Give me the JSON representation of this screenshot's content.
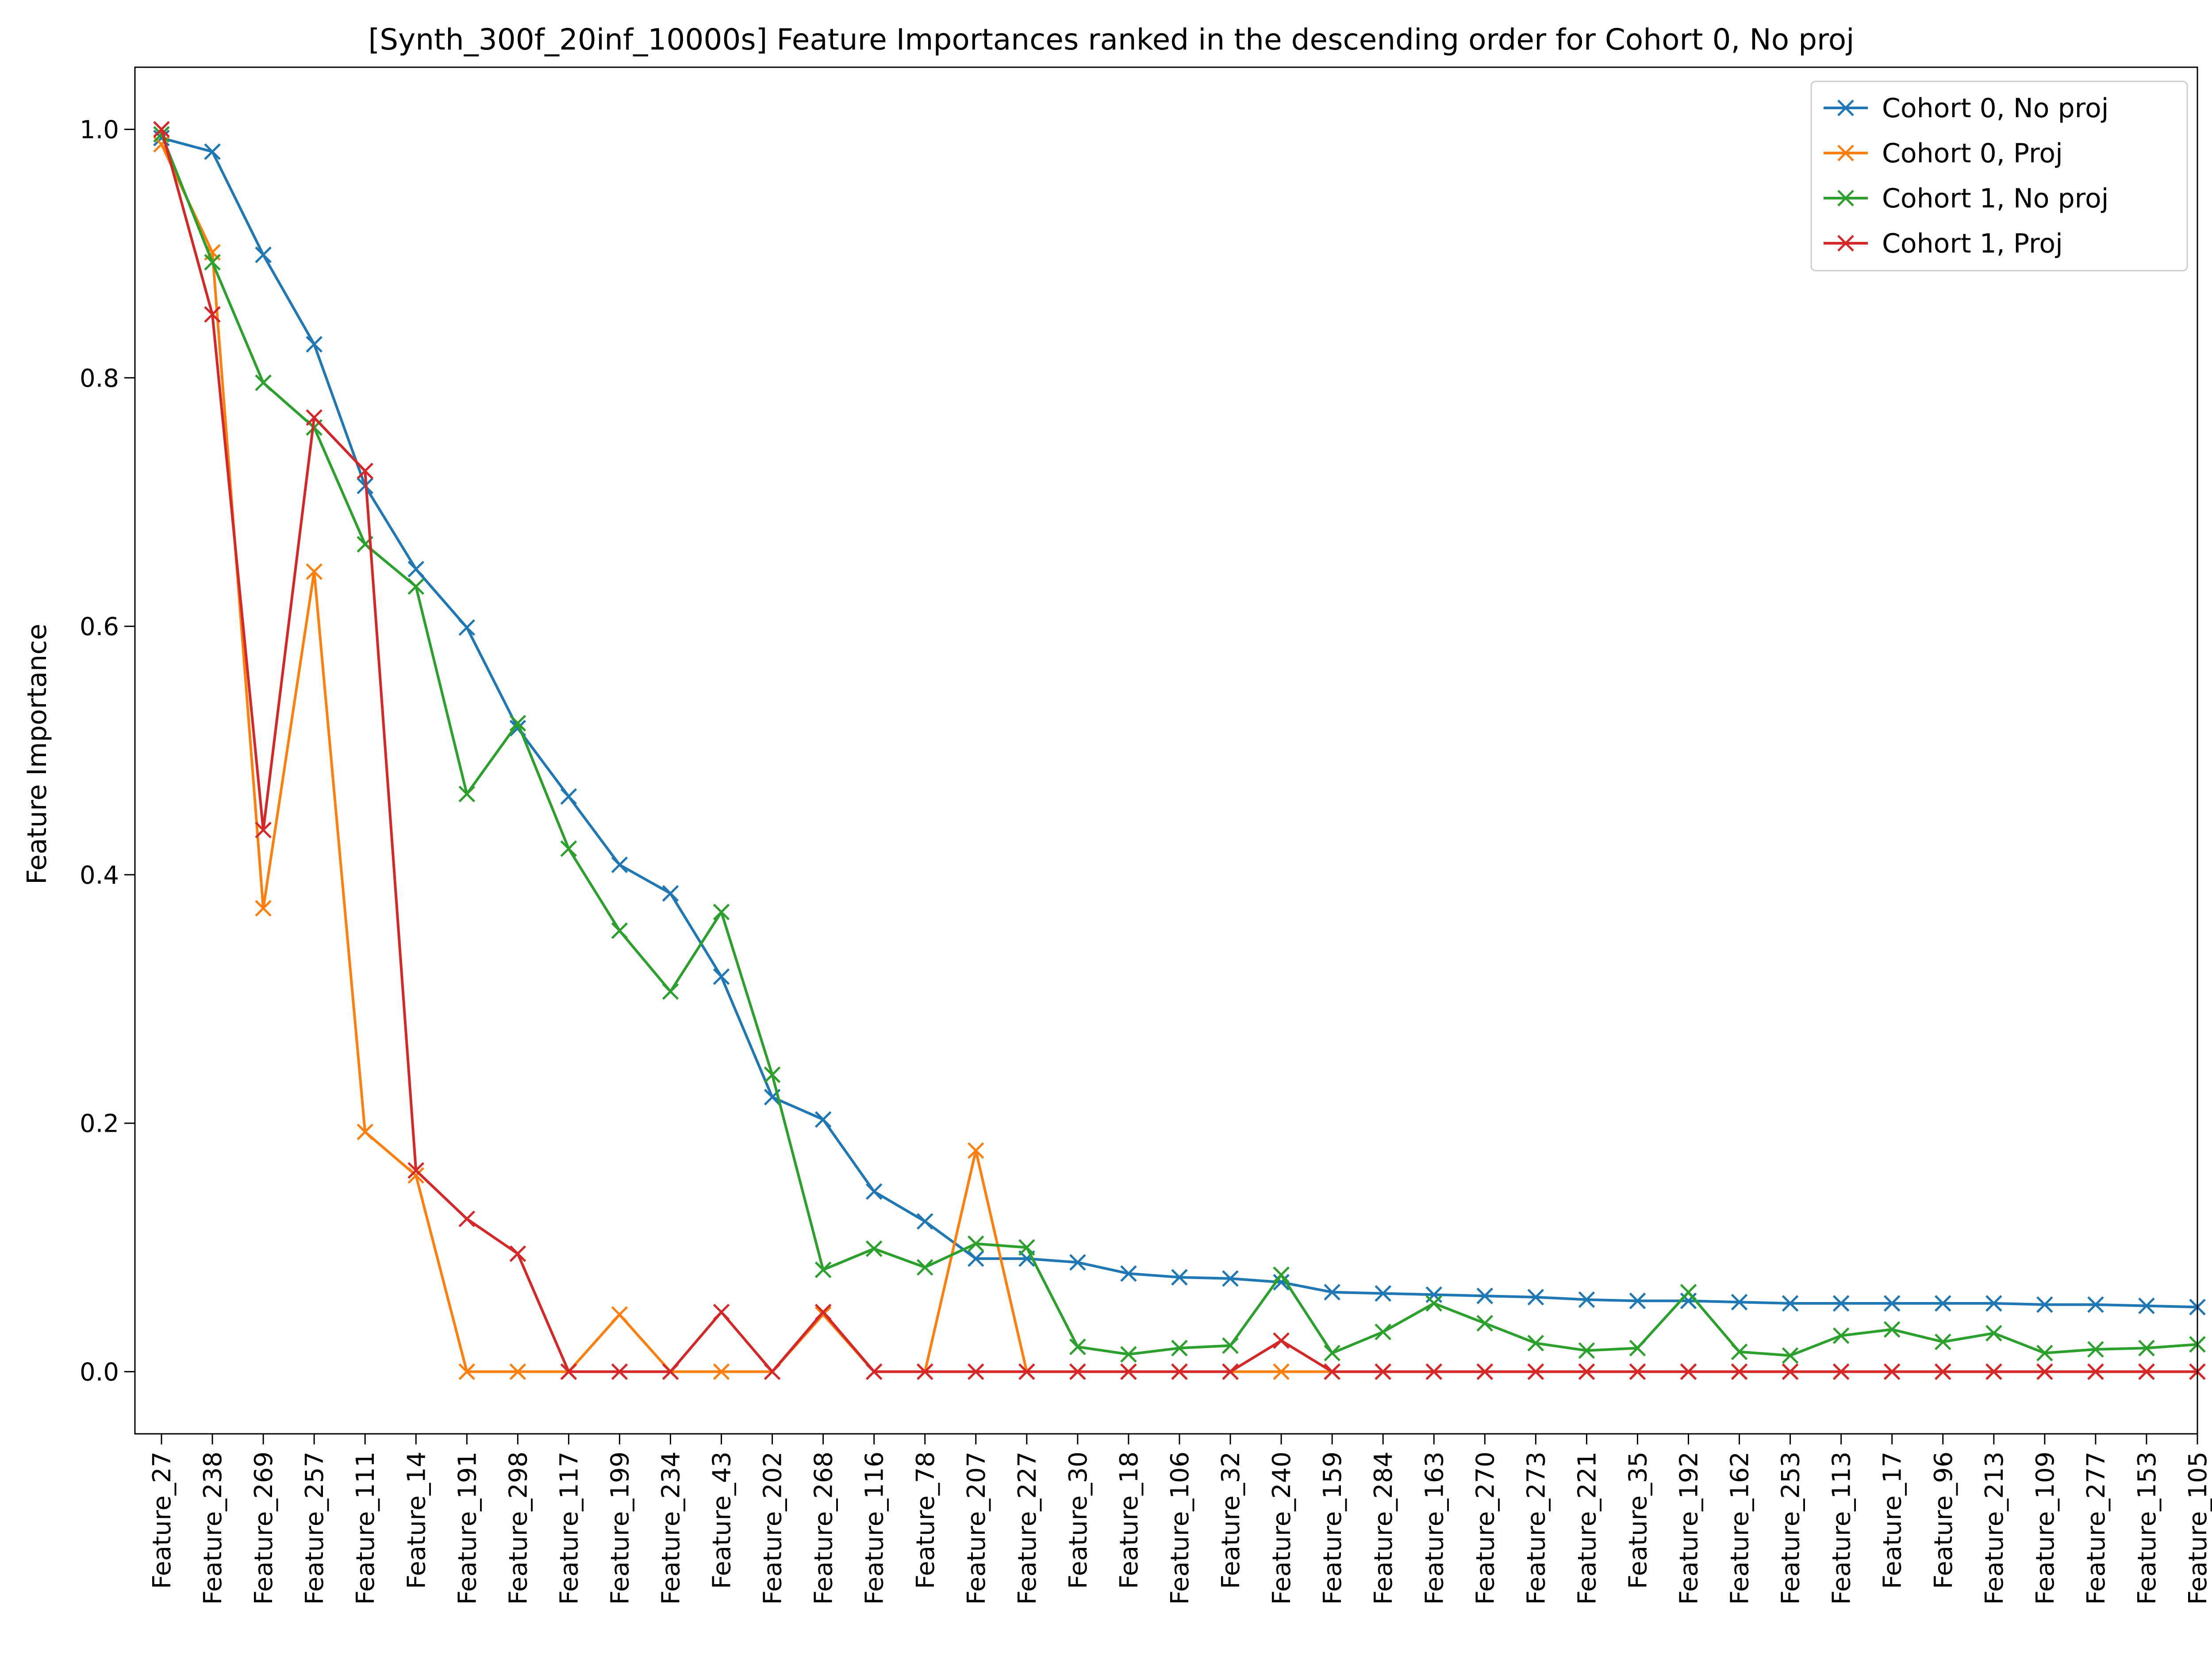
{
  "chart_data": {
    "type": "line",
    "title": "[Synth_300f_20inf_10000s] Feature Importances ranked in the descending order for Cohort 0, No proj",
    "xlabel": "",
    "ylabel": "Feature Importance",
    "ylim": [
      -0.05,
      1.05
    ],
    "yticks": [
      "0.0",
      "0.2",
      "0.4",
      "0.6",
      "0.8",
      "1.0"
    ],
    "ytick_values": [
      0.0,
      0.2,
      0.4,
      0.6,
      0.8,
      1.0
    ],
    "grid": false,
    "legend_position": "top-right",
    "marker": "x",
    "categories": [
      "Feature_27",
      "Feature_238",
      "Feature_269",
      "Feature_257",
      "Feature_111",
      "Feature_14",
      "Feature_191",
      "Feature_298",
      "Feature_117",
      "Feature_199",
      "Feature_234",
      "Feature_43",
      "Feature_202",
      "Feature_268",
      "Feature_116",
      "Feature_78",
      "Feature_207",
      "Feature_227",
      "Feature_30",
      "Feature_18",
      "Feature_106",
      "Feature_32",
      "Feature_240",
      "Feature_159",
      "Feature_284",
      "Feature_163",
      "Feature_270",
      "Feature_273",
      "Feature_221",
      "Feature_35",
      "Feature_192",
      "Feature_162",
      "Feature_253",
      "Feature_113",
      "Feature_17",
      "Feature_96",
      "Feature_213",
      "Feature_109",
      "Feature_277",
      "Feature_153",
      "Feature_105"
    ],
    "series": [
      {
        "name": "Cohort 0, No proj",
        "color": "#1f77b4",
        "values": [
          0.993,
          0.982,
          0.899,
          0.827,
          0.713,
          0.646,
          0.599,
          0.518,
          0.463,
          0.408,
          0.385,
          0.318,
          0.221,
          0.203,
          0.145,
          0.121,
          0.091,
          0.091,
          0.088,
          0.079,
          0.076,
          0.075,
          0.072,
          0.064,
          0.063,
          0.062,
          0.061,
          0.06,
          0.058,
          0.057,
          0.057,
          0.056,
          0.055,
          0.055,
          0.055,
          0.055,
          0.055,
          0.054,
          0.054,
          0.053,
          0.052
        ]
      },
      {
        "name": "Cohort 0, Proj",
        "color": "#ff7f0e",
        "values": [
          0.988,
          0.901,
          0.373,
          0.644,
          0.193,
          0.158,
          0.0,
          0.0,
          0.0,
          0.046,
          0.0,
          0.0,
          0.0,
          0.046,
          0.0,
          0.0,
          0.178,
          0.0,
          0.0,
          0.0,
          0.0,
          0.0,
          0.0,
          0.0,
          0.0,
          0.0,
          0.0,
          0.0,
          0.0,
          0.0,
          0.0,
          0.0,
          0.0,
          0.0,
          0.0,
          0.0,
          0.0,
          0.0,
          0.0,
          0.0,
          0.0
        ]
      },
      {
        "name": "Cohort 1, No proj",
        "color": "#2ca02c",
        "values": [
          0.996,
          0.893,
          0.796,
          0.76,
          0.666,
          0.632,
          0.465,
          0.522,
          0.421,
          0.355,
          0.306,
          0.37,
          0.239,
          0.082,
          0.099,
          0.084,
          0.103,
          0.1,
          0.02,
          0.014,
          0.019,
          0.021,
          0.078,
          0.015,
          0.032,
          0.055,
          0.039,
          0.023,
          0.017,
          0.019,
          0.064,
          0.016,
          0.013,
          0.029,
          0.034,
          0.024,
          0.031,
          0.015,
          0.018,
          0.019,
          0.022
        ]
      },
      {
        "name": "Cohort 1, Proj",
        "color": "#d62728",
        "values": [
          1.0,
          0.851,
          0.436,
          0.768,
          0.725,
          0.162,
          0.123,
          0.095,
          0.0,
          0.0,
          0.0,
          0.048,
          0.0,
          0.048,
          0.0,
          0.0,
          0.0,
          0.0,
          0.0,
          0.0,
          0.0,
          0.0,
          0.025,
          0.0,
          0.0,
          0.0,
          0.0,
          0.0,
          0.0,
          0.0,
          0.0,
          0.0,
          0.0,
          0.0,
          0.0,
          0.0,
          0.0,
          0.0,
          0.0,
          0.0,
          0.0
        ]
      }
    ]
  }
}
